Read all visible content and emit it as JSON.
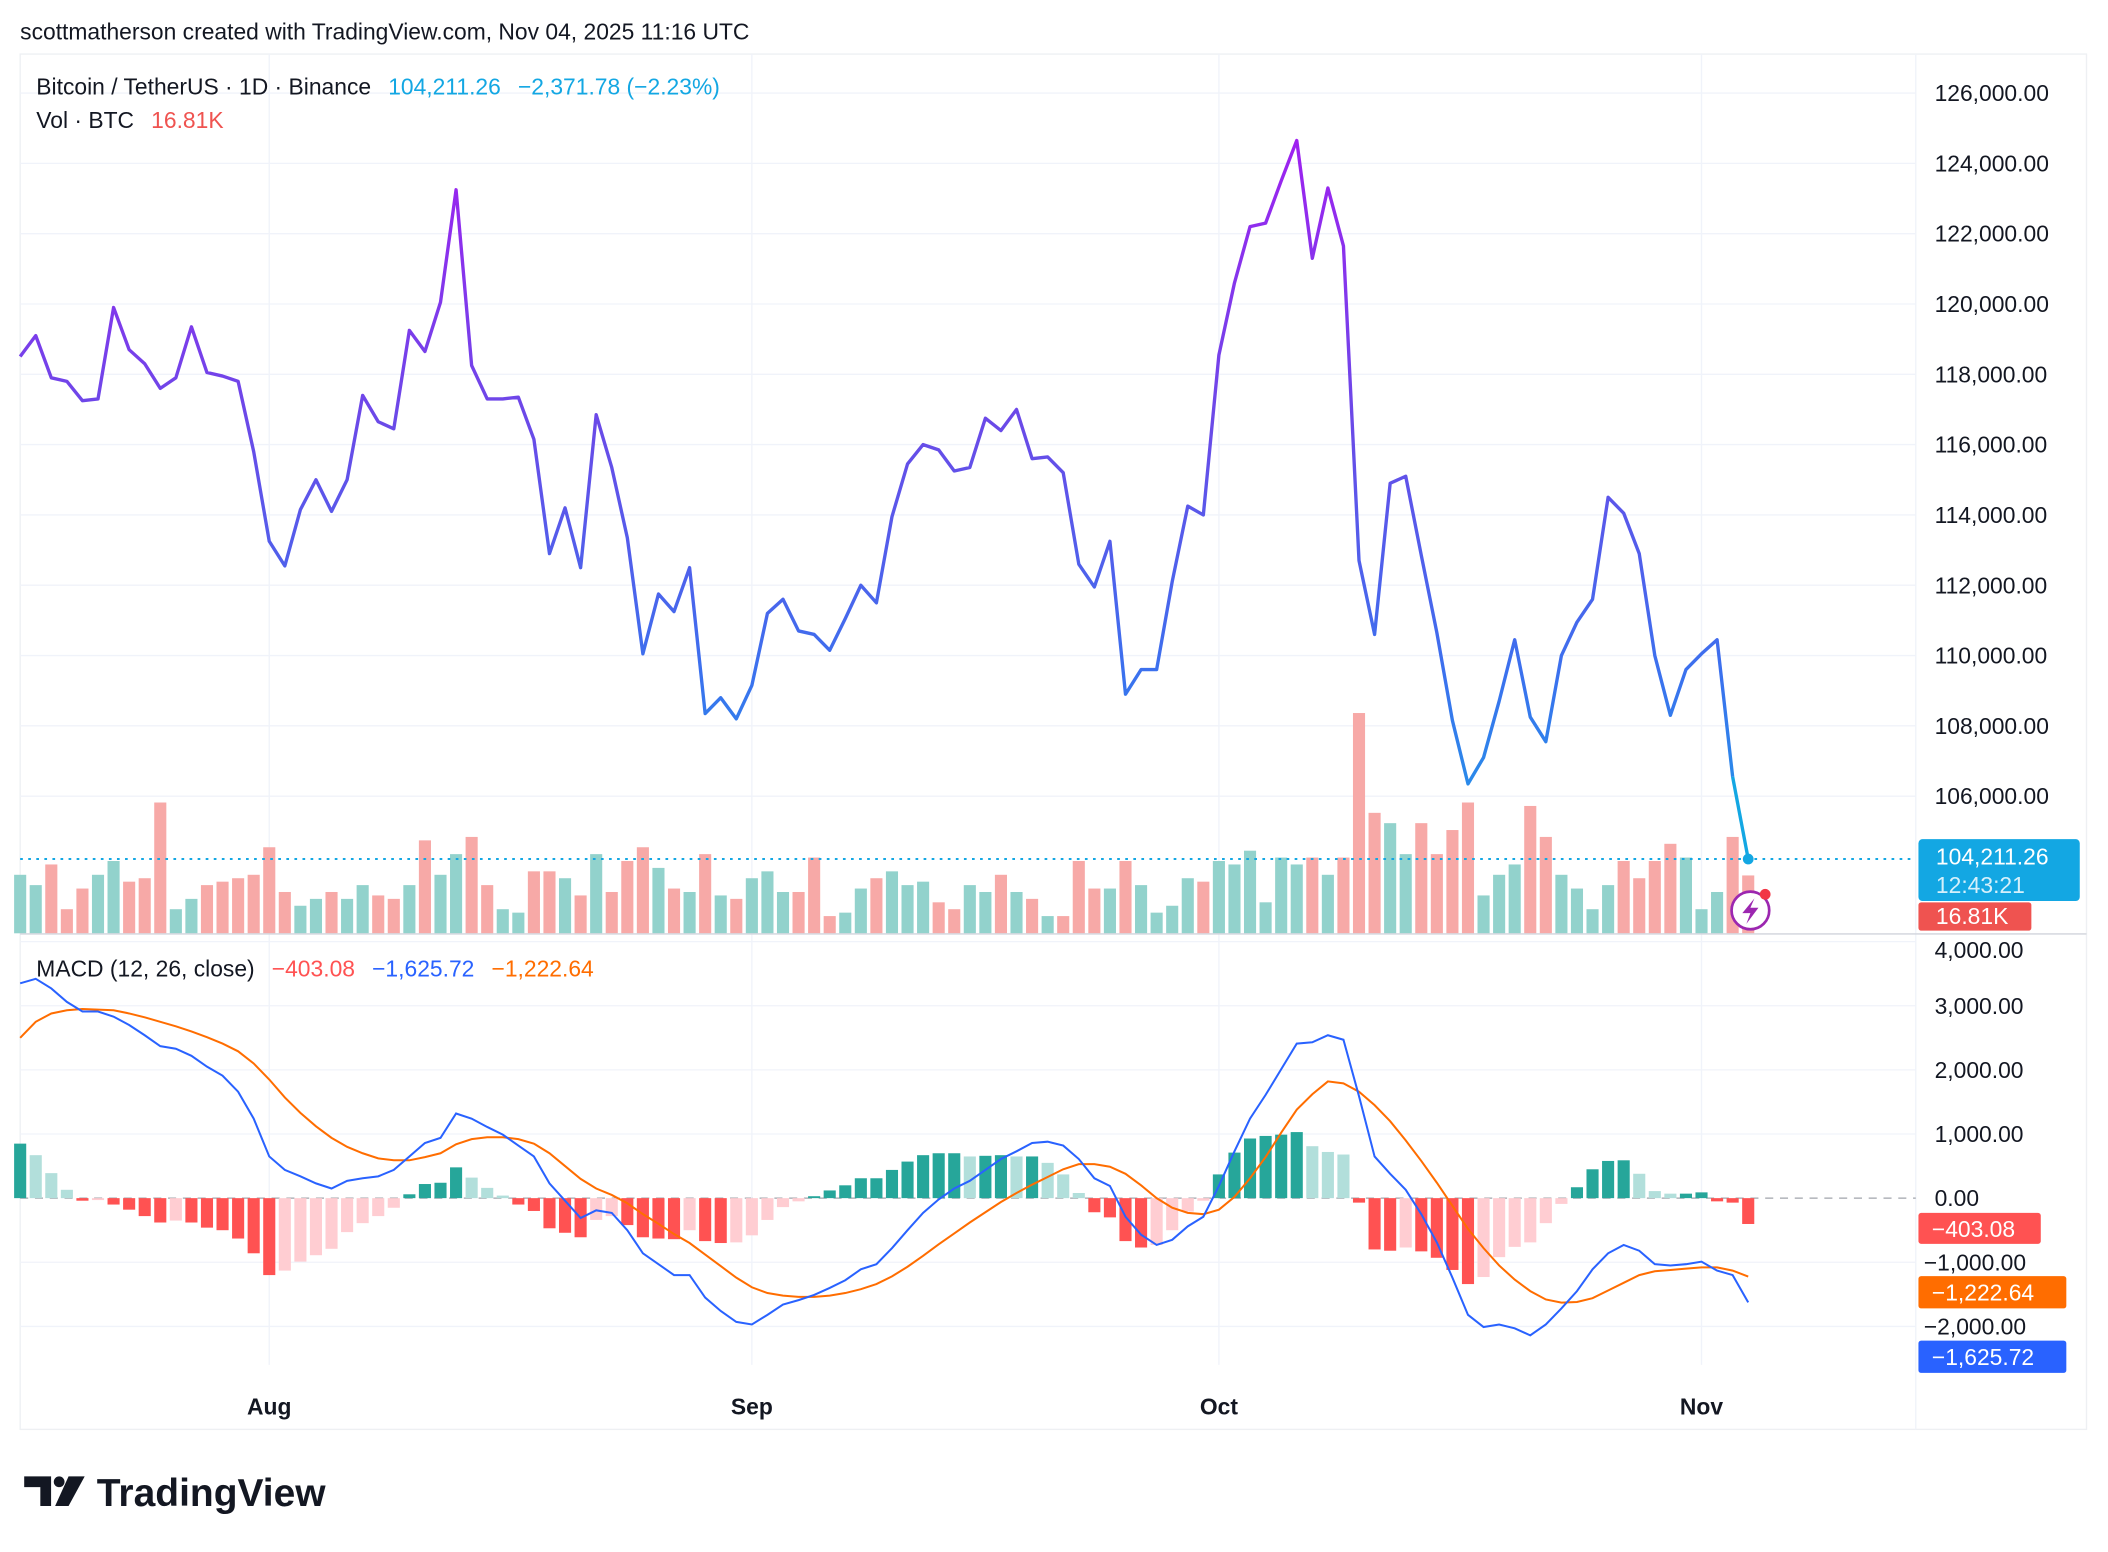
{
  "caption": "scottmatherson created with TradingView.com, Nov 04, 2025 11:16 UTC",
  "legend": {
    "symbol": "Bitcoin / TetherUS · 1D · Binance",
    "last": "104,211.26",
    "change": "−2,371.78 (−2.23%)",
    "vol_label": "Vol · BTC",
    "vol_value": "16.81K",
    "macd_label": "MACD (12, 26, close)",
    "macd_hist": "−403.08",
    "macd_line": "−1,625.72",
    "macd_signal": "−1,222.64"
  },
  "badges": {
    "price": "104,211.26",
    "countdown": "12:43:21",
    "volume": "16.81K",
    "hist": "−403.08",
    "signal": "−1,222.64",
    "macd": "−1,625.72"
  },
  "logo": "TradingView",
  "colors": {
    "up": "#26a69a",
    "up_light": "#b2dfdb",
    "down": "#ff5252",
    "down_light": "#ffcdd2",
    "vol_up": "#92d2cc",
    "vol_down": "#f7a9a7",
    "price_line_top": "#a020f0",
    "price_line_bottom": "#1e90e8",
    "last_price": "#13a7e3",
    "macd_line": "#2962ff",
    "signal_line": "#ff6d00",
    "vol_badge": "#ef5350"
  },
  "chart_data": {
    "type": "line",
    "title": "Bitcoin / TetherUS · 1D · Binance",
    "x_ticks": [
      {
        "label": "Aug",
        "date": "2025-08-01"
      },
      {
        "label": "Sep",
        "date": "2025-09-01"
      },
      {
        "label": "Oct",
        "date": "2025-10-01"
      },
      {
        "label": "Nov",
        "date": "2025-11-01"
      }
    ],
    "price_axis": {
      "ylim": [
        104000,
        127000
      ],
      "ticks": [
        "126,000.00",
        "124,000.00",
        "122,000.00",
        "120,000.00",
        "118,000.00",
        "116,000.00",
        "114,000.00",
        "112,000.00",
        "110,000.00",
        "108,000.00",
        "106,000.00"
      ],
      "tick_values": [
        126000,
        124000,
        122000,
        120000,
        118000,
        116000,
        114000,
        112000,
        110000,
        108000,
        106000
      ]
    },
    "macd_axis": {
      "ticks": [
        "4,000.00",
        "3,000.00",
        "2,000.00",
        "1,000.00",
        "0.00",
        "−1,000.00",
        "−2,000.00"
      ],
      "tick_values": [
        4000,
        3000,
        2000,
        1000,
        0,
        -1000,
        -2000
      ]
    },
    "grid": true,
    "dates": [
      "2025-07-16",
      "2025-07-17",
      "2025-07-18",
      "2025-07-19",
      "2025-07-20",
      "2025-07-21",
      "2025-07-22",
      "2025-07-23",
      "2025-07-24",
      "2025-07-25",
      "2025-07-26",
      "2025-07-27",
      "2025-07-28",
      "2025-07-29",
      "2025-07-30",
      "2025-07-31",
      "2025-08-01",
      "2025-08-02",
      "2025-08-03",
      "2025-08-04",
      "2025-08-05",
      "2025-08-06",
      "2025-08-07",
      "2025-08-08",
      "2025-08-09",
      "2025-08-10",
      "2025-08-11",
      "2025-08-12",
      "2025-08-13",
      "2025-08-14",
      "2025-08-15",
      "2025-08-16",
      "2025-08-17",
      "2025-08-18",
      "2025-08-19",
      "2025-08-20",
      "2025-08-21",
      "2025-08-22",
      "2025-08-23",
      "2025-08-24",
      "2025-08-25",
      "2025-08-26",
      "2025-08-27",
      "2025-08-28",
      "2025-08-29",
      "2025-08-30",
      "2025-08-31",
      "2025-09-01",
      "2025-09-02",
      "2025-09-03",
      "2025-09-04",
      "2025-09-05",
      "2025-09-06",
      "2025-09-07",
      "2025-09-08",
      "2025-09-09",
      "2025-09-10",
      "2025-09-11",
      "2025-09-12",
      "2025-09-13",
      "2025-09-14",
      "2025-09-15",
      "2025-09-16",
      "2025-09-17",
      "2025-09-18",
      "2025-09-19",
      "2025-09-20",
      "2025-09-21",
      "2025-09-22",
      "2025-09-23",
      "2025-09-24",
      "2025-09-25",
      "2025-09-26",
      "2025-09-27",
      "2025-09-28",
      "2025-09-29",
      "2025-09-30",
      "2025-10-01",
      "2025-10-02",
      "2025-10-03",
      "2025-10-04",
      "2025-10-05",
      "2025-10-06",
      "2025-10-07",
      "2025-10-08",
      "2025-10-09",
      "2025-10-10",
      "2025-10-11",
      "2025-10-12",
      "2025-10-13",
      "2025-10-14",
      "2025-10-15",
      "2025-10-16",
      "2025-10-17",
      "2025-10-18",
      "2025-10-19",
      "2025-10-20",
      "2025-10-21",
      "2025-10-22",
      "2025-10-23",
      "2025-10-24",
      "2025-10-25",
      "2025-10-26",
      "2025-10-27",
      "2025-10-28",
      "2025-10-29",
      "2025-10-30",
      "2025-10-31",
      "2025-11-01",
      "2025-11-02",
      "2025-11-03",
      "2025-11-04"
    ],
    "close": [
      118505,
      119100,
      117900,
      117800,
      117250,
      117300,
      119900,
      118700,
      118300,
      117600,
      117900,
      119350,
      118050,
      117950,
      117800,
      115800,
      113250,
      112550,
      114150,
      115000,
      114100,
      115000,
      117400,
      116650,
      116450,
      119250,
      118650,
      120050,
      123250,
      118250,
      117300,
      117300,
      117350,
      116150,
      112900,
      114200,
      112500,
      116850,
      115350,
      113350,
      110050,
      111750,
      111250,
      112500,
      108350,
      108800,
      108200,
      109150,
      111200,
      111600,
      110700,
      110600,
      110150,
      111050,
      112000,
      111500,
      113950,
      115450,
      116000,
      115850,
      115250,
      115350,
      116750,
      116400,
      117000,
      115600,
      115650,
      115200,
      112600,
      111950,
      113250,
      108900,
      109600,
      109600,
      112100,
      114250,
      114000,
      118550,
      120600,
      122200,
      122300,
      123500,
      124650,
      121300,
      123300,
      121650,
      112700,
      110600,
      114900,
      115100,
      112850,
      110650,
      108150,
      106350,
      107100,
      108700,
      110450,
      108250,
      107550,
      110000,
      110950,
      111600,
      114500,
      114050,
      112900,
      110000,
      108300,
      109600,
      110050,
      110450,
      106550,
      104211.26
    ],
    "volume_k": [
      17,
      14,
      20,
      7,
      13,
      17,
      21,
      15,
      16,
      38,
      7,
      10,
      14,
      15,
      16,
      17,
      25,
      12,
      8,
      10,
      12,
      10,
      14,
      11,
      10,
      14,
      27,
      17,
      23,
      28,
      14,
      7,
      6,
      18,
      18,
      16,
      11,
      23,
      12,
      21,
      25,
      19,
      13,
      12,
      23,
      11,
      10,
      16,
      18,
      12,
      12,
      22,
      5,
      6,
      13,
      16,
      18,
      14,
      15,
      9,
      7,
      14,
      12,
      17,
      12,
      10,
      5,
      5,
      21,
      13,
      13,
      21,
      14,
      6,
      8,
      16,
      15,
      21,
      20,
      24,
      9,
      22,
      20,
      22,
      17,
      22,
      64,
      35,
      32,
      23,
      32,
      23,
      30,
      38,
      11,
      17,
      20,
      37,
      28,
      17,
      13,
      7,
      14,
      21,
      16,
      21,
      26,
      22,
      7,
      12,
      28,
      16.81
    ],
    "macd": [
      3350,
      3420,
      3270,
      3060,
      2910,
      2910,
      2830,
      2700,
      2540,
      2370,
      2330,
      2220,
      2050,
      1910,
      1660,
      1240,
      650,
      440,
      340,
      230,
      150,
      270,
      310,
      340,
      440,
      650,
      860,
      940,
      1320,
      1240,
      1110,
      990,
      820,
      650,
      230,
      -40,
      -310,
      -190,
      -230,
      -500,
      -860,
      -1030,
      -1200,
      -1200,
      -1550,
      -1760,
      -1930,
      -1970,
      -1820,
      -1660,
      -1590,
      -1510,
      -1400,
      -1280,
      -1110,
      -1030,
      -780,
      -500,
      -230,
      -20,
      150,
      270,
      440,
      610,
      730,
      860,
      880,
      820,
      610,
      310,
      190,
      -290,
      -570,
      -730,
      -650,
      -440,
      -290,
      190,
      730,
      1240,
      1610,
      2010,
      2410,
      2430,
      2540,
      2470,
      1590,
      650,
      380,
      130,
      -250,
      -690,
      -1240,
      -1820,
      -2010,
      -1970,
      -2030,
      -2140,
      -1970,
      -1720,
      -1450,
      -1110,
      -860,
      -730,
      -820,
      -1030,
      -1050,
      -1030,
      -990,
      -1130,
      -1200,
      -1625.72
    ],
    "signal": [
      2500,
      2750,
      2880,
      2930,
      2950,
      2940,
      2930,
      2880,
      2820,
      2750,
      2680,
      2600,
      2510,
      2410,
      2290,
      2100,
      1850,
      1570,
      1330,
      1120,
      940,
      800,
      700,
      620,
      590,
      590,
      640,
      700,
      840,
      920,
      950,
      950,
      920,
      850,
      700,
      500,
      300,
      150,
      50,
      -80,
      -250,
      -400,
      -560,
      -700,
      -880,
      -1060,
      -1240,
      -1390,
      -1480,
      -1520,
      -1540,
      -1540,
      -1520,
      -1480,
      -1420,
      -1340,
      -1220,
      -1070,
      -900,
      -720,
      -550,
      -380,
      -220,
      -60,
      80,
      210,
      330,
      450,
      530,
      530,
      490,
      380,
      200,
      0,
      -150,
      -230,
      -250,
      -180,
      20,
      310,
      640,
      1020,
      1380,
      1620,
      1820,
      1790,
      1660,
      1450,
      1200,
      900,
      580,
      240,
      -120,
      -480,
      -780,
      -1050,
      -1270,
      -1450,
      -1580,
      -1630,
      -1620,
      -1560,
      -1440,
      -1320,
      -1200,
      -1140,
      -1120,
      -1100,
      -1080,
      -1080,
      -1130,
      -1222.64
    ]
  }
}
